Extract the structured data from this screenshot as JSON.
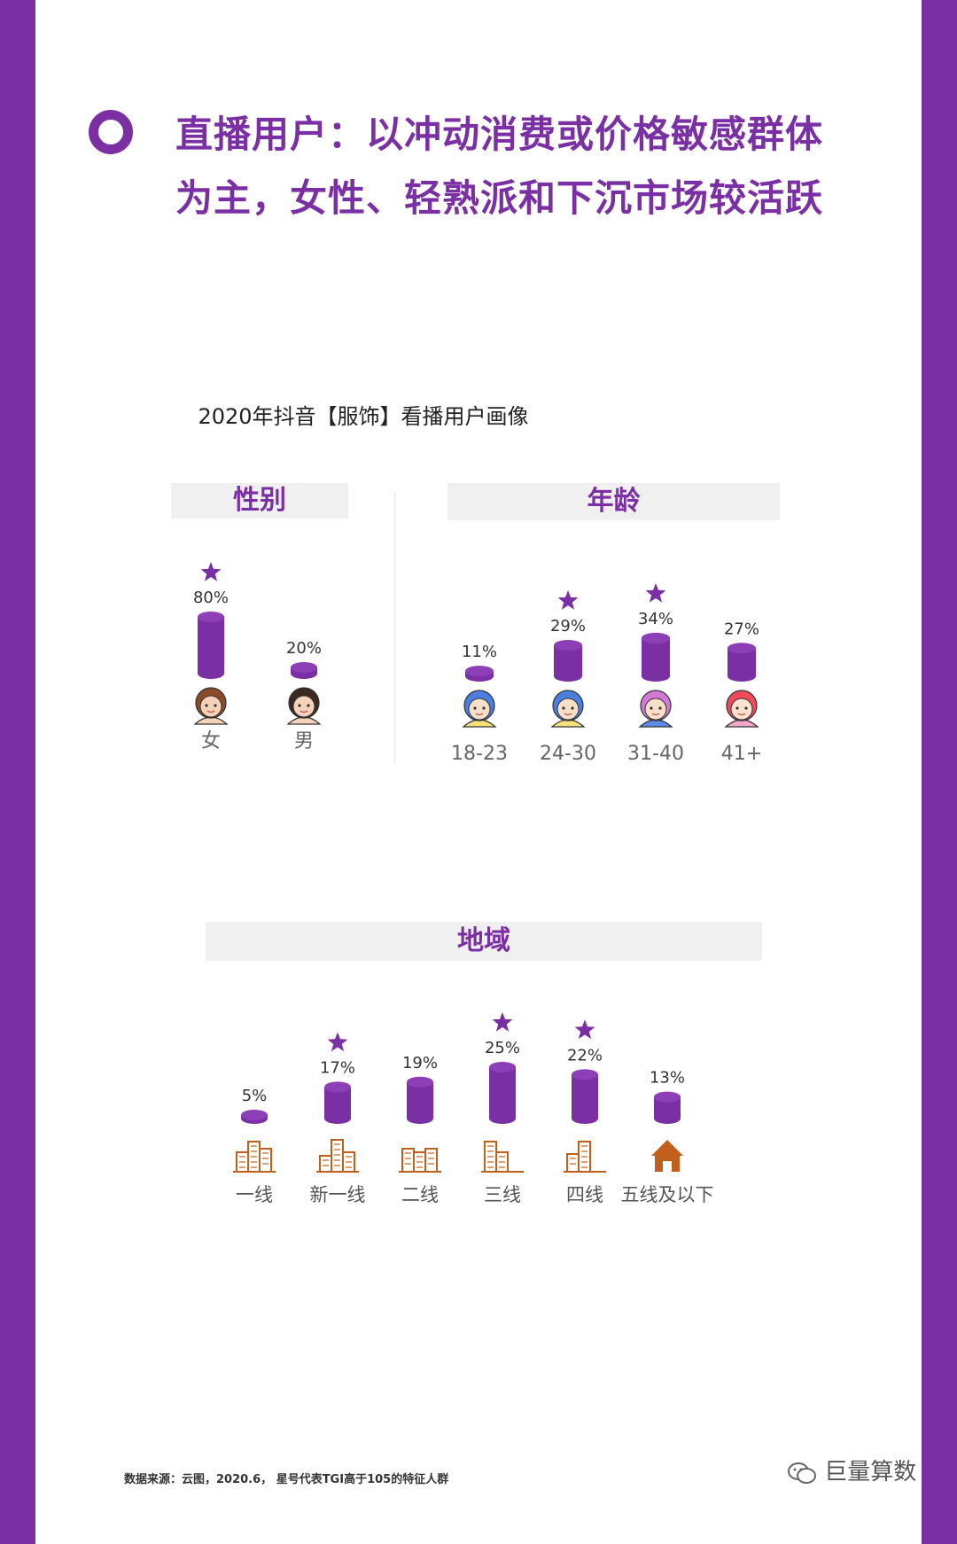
{
  "headline": {
    "line1": "直播用户：以冲动消费或价格敏感群体",
    "line2": "为主，女性、轻熟派和下沉市场较活跃"
  },
  "figure_title": "2020年抖音【服饰】看播用户画像",
  "footer": {
    "source": "数据来源：云图，2020.6， 星号代表TGI高于105的特征人群",
    "brand": "巨量算数"
  },
  "colors": {
    "bar": "#7b2fa4",
    "accent": "#7b2fa4",
    "icon_city": "#c0601a"
  },
  "chart_data": [
    {
      "type": "bar",
      "title": "性别",
      "categories": [
        "女",
        "男"
      ],
      "values": [
        80,
        20
      ],
      "labels": [
        "80%",
        "20%"
      ],
      "starred": [
        true,
        false
      ],
      "icons": [
        "female-face-icon",
        "male-face-icon"
      ],
      "unit": "%"
    },
    {
      "type": "bar",
      "title": "年龄",
      "categories": [
        "18-23",
        "24-30",
        "31-40",
        "41+"
      ],
      "values": [
        11,
        29,
        34,
        27
      ],
      "labels": [
        "11%",
        "29%",
        "34%",
        "27%"
      ],
      "starred": [
        false,
        true,
        true,
        false
      ],
      "icons": [
        "avatar-18-23-icon",
        "avatar-24-30-icon",
        "avatar-31-40-icon",
        "avatar-41-plus-icon"
      ],
      "unit": "%"
    },
    {
      "type": "bar",
      "title": "地域",
      "categories": [
        "一线",
        "新一线",
        "二线",
        "三线",
        "四线",
        "五线及以下"
      ],
      "values": [
        5,
        17,
        19,
        25,
        22,
        13
      ],
      "labels": [
        "5%",
        "17%",
        "19%",
        "25%",
        "22%",
        "13%"
      ],
      "starred": [
        false,
        true,
        false,
        true,
        true,
        false
      ],
      "icons": [
        "city-tier1-icon",
        "city-new-tier1-icon",
        "city-tier2-icon",
        "city-tier3-icon",
        "city-tier4-icon",
        "house-icon"
      ],
      "unit": "%"
    }
  ]
}
